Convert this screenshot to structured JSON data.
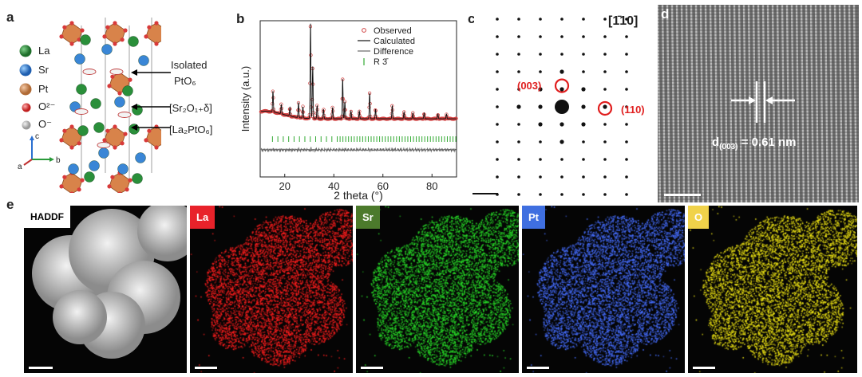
{
  "panel_labels": {
    "a": "a",
    "b": "b",
    "c": "c",
    "d": "d",
    "e": "e"
  },
  "colors": {
    "la": "#ff1a1a",
    "sr": "#2dcc2d",
    "pt": "#3a5fe0",
    "o": "#e8dc22",
    "observed": "#d04040",
    "calculated": "#111111",
    "difference": "#666666",
    "bragg": "#33aa33"
  },
  "panel_a": {
    "legend": [
      {
        "symbol": "La",
        "color": "#2a8f3a",
        "icon": "green-sphere-icon"
      },
      {
        "symbol": "Sr",
        "color": "#3a86d6",
        "icon": "blue-sphere-icon"
      },
      {
        "symbol": "Pt",
        "color": "#d08a55",
        "icon": "orange-sphere-icon"
      },
      {
        "symbol": "O²⁻",
        "color": "#d83a3a",
        "icon": "red-sphere-icon"
      },
      {
        "symbol": "O⁻",
        "color": "#bbbbbb",
        "icon": "grey-sphere-icon"
      }
    ],
    "annotations": {
      "isolated_line1": "Isolated",
      "isolated_line2": "PtO₆",
      "sr_layer": "[Sr₂O₁₊δ]",
      "la_layer": "[La₂PtO₆]"
    },
    "axes": {
      "c": "c",
      "b": "b",
      "a": "a"
    }
  },
  "chart_data": {
    "type": "scatter",
    "title": "",
    "xlabel": "2 theta (°)",
    "ylabel": "Intensity (a.u.)",
    "xlim": [
      10,
      90
    ],
    "x_ticks": [
      20,
      40,
      60,
      80
    ],
    "legend": [
      "Observed",
      "Calculated",
      "Difference",
      "R 3̄"
    ],
    "legend_placement": "top-right",
    "series": [
      {
        "name": "Observed",
        "kind": "peaks",
        "peaks": [
          {
            "x": 15.2,
            "y": 0.22
          },
          {
            "x": 18.6,
            "y": 0.1
          },
          {
            "x": 22.1,
            "y": 0.09
          },
          {
            "x": 25.6,
            "y": 0.16
          },
          {
            "x": 27.4,
            "y": 0.12
          },
          {
            "x": 30.5,
            "y": 1.0
          },
          {
            "x": 31.4,
            "y": 0.55
          },
          {
            "x": 33.2,
            "y": 0.14
          },
          {
            "x": 35.8,
            "y": 0.1
          },
          {
            "x": 39.5,
            "y": 0.12
          },
          {
            "x": 43.6,
            "y": 0.42
          },
          {
            "x": 44.5,
            "y": 0.18
          },
          {
            "x": 47.0,
            "y": 0.08
          },
          {
            "x": 50.4,
            "y": 0.08
          },
          {
            "x": 54.6,
            "y": 0.27
          },
          {
            "x": 57.0,
            "y": 0.1
          },
          {
            "x": 63.8,
            "y": 0.14
          },
          {
            "x": 68.6,
            "y": 0.07
          },
          {
            "x": 72.2,
            "y": 0.06
          },
          {
            "x": 76.8,
            "y": 0.06
          },
          {
            "x": 82.4,
            "y": 0.05
          },
          {
            "x": 85.9,
            "y": 0.05
          }
        ]
      },
      {
        "name": "Calculated",
        "kind": "line"
      },
      {
        "name": "Difference",
        "kind": "line"
      },
      {
        "name": "R 3̄",
        "kind": "ticks"
      }
    ]
  },
  "panel_c": {
    "zone_axis": "[1̄10]",
    "spot_1": "(003)",
    "spot_2": "(110)"
  },
  "panel_d": {
    "measurement": "d(003) = 0.61 nm",
    "d_main": "d",
    "d_sub": "(003)",
    "d_value": " = 0.61 nm"
  },
  "panel_e": {
    "maps": [
      {
        "label": "HADDF",
        "kind": "haadf",
        "tag_bg": "#ffffff",
        "tag_color": "#000000"
      },
      {
        "label": "La",
        "kind": "map",
        "tag_bg": "#e8222a",
        "tag_color": "#ffffff"
      },
      {
        "label": "Sr",
        "kind": "map",
        "tag_bg": "#4c7a2c",
        "tag_color": "#ffffff"
      },
      {
        "label": "Pt",
        "kind": "map",
        "tag_bg": "#3f6fe0",
        "tag_color": "#ffffff"
      },
      {
        "label": "O",
        "kind": "map",
        "tag_bg": "#f0d24a",
        "tag_color": "#ffffff"
      }
    ]
  }
}
